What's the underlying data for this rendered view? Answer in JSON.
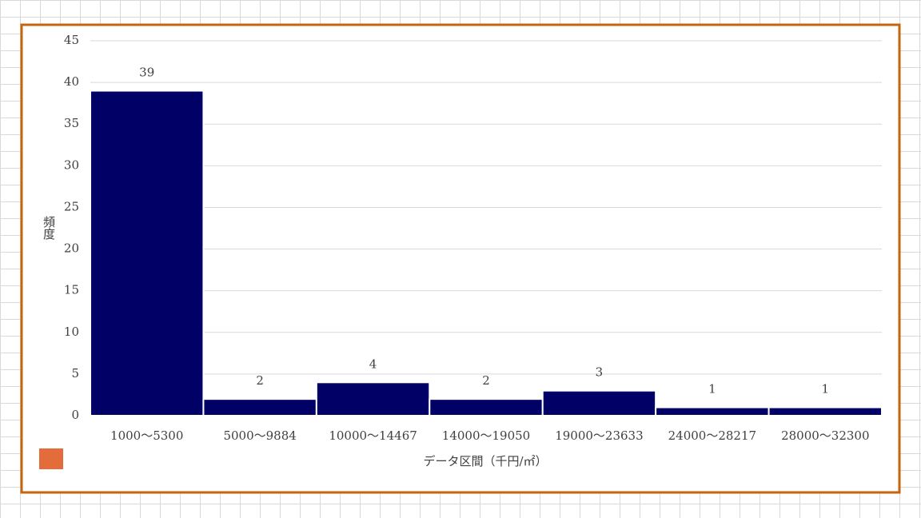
{
  "chart_data": {
    "type": "bar",
    "categories": [
      "1000～5300",
      "5000～9884",
      "10000～14467",
      "14000～19050",
      "19000～23633",
      "24000～28217",
      "28000～32300"
    ],
    "values": [
      39,
      2,
      4,
      2,
      3,
      1,
      1
    ],
    "color": "#000066",
    "x_label": "データ区間（千円/㎡）",
    "y_label": "頻度",
    "ylim": [
      0,
      45
    ],
    "yticks": [
      0,
      5,
      10,
      15,
      20,
      25,
      30,
      35,
      40,
      45
    ],
    "grid": true,
    "data_labels": true
  }
}
